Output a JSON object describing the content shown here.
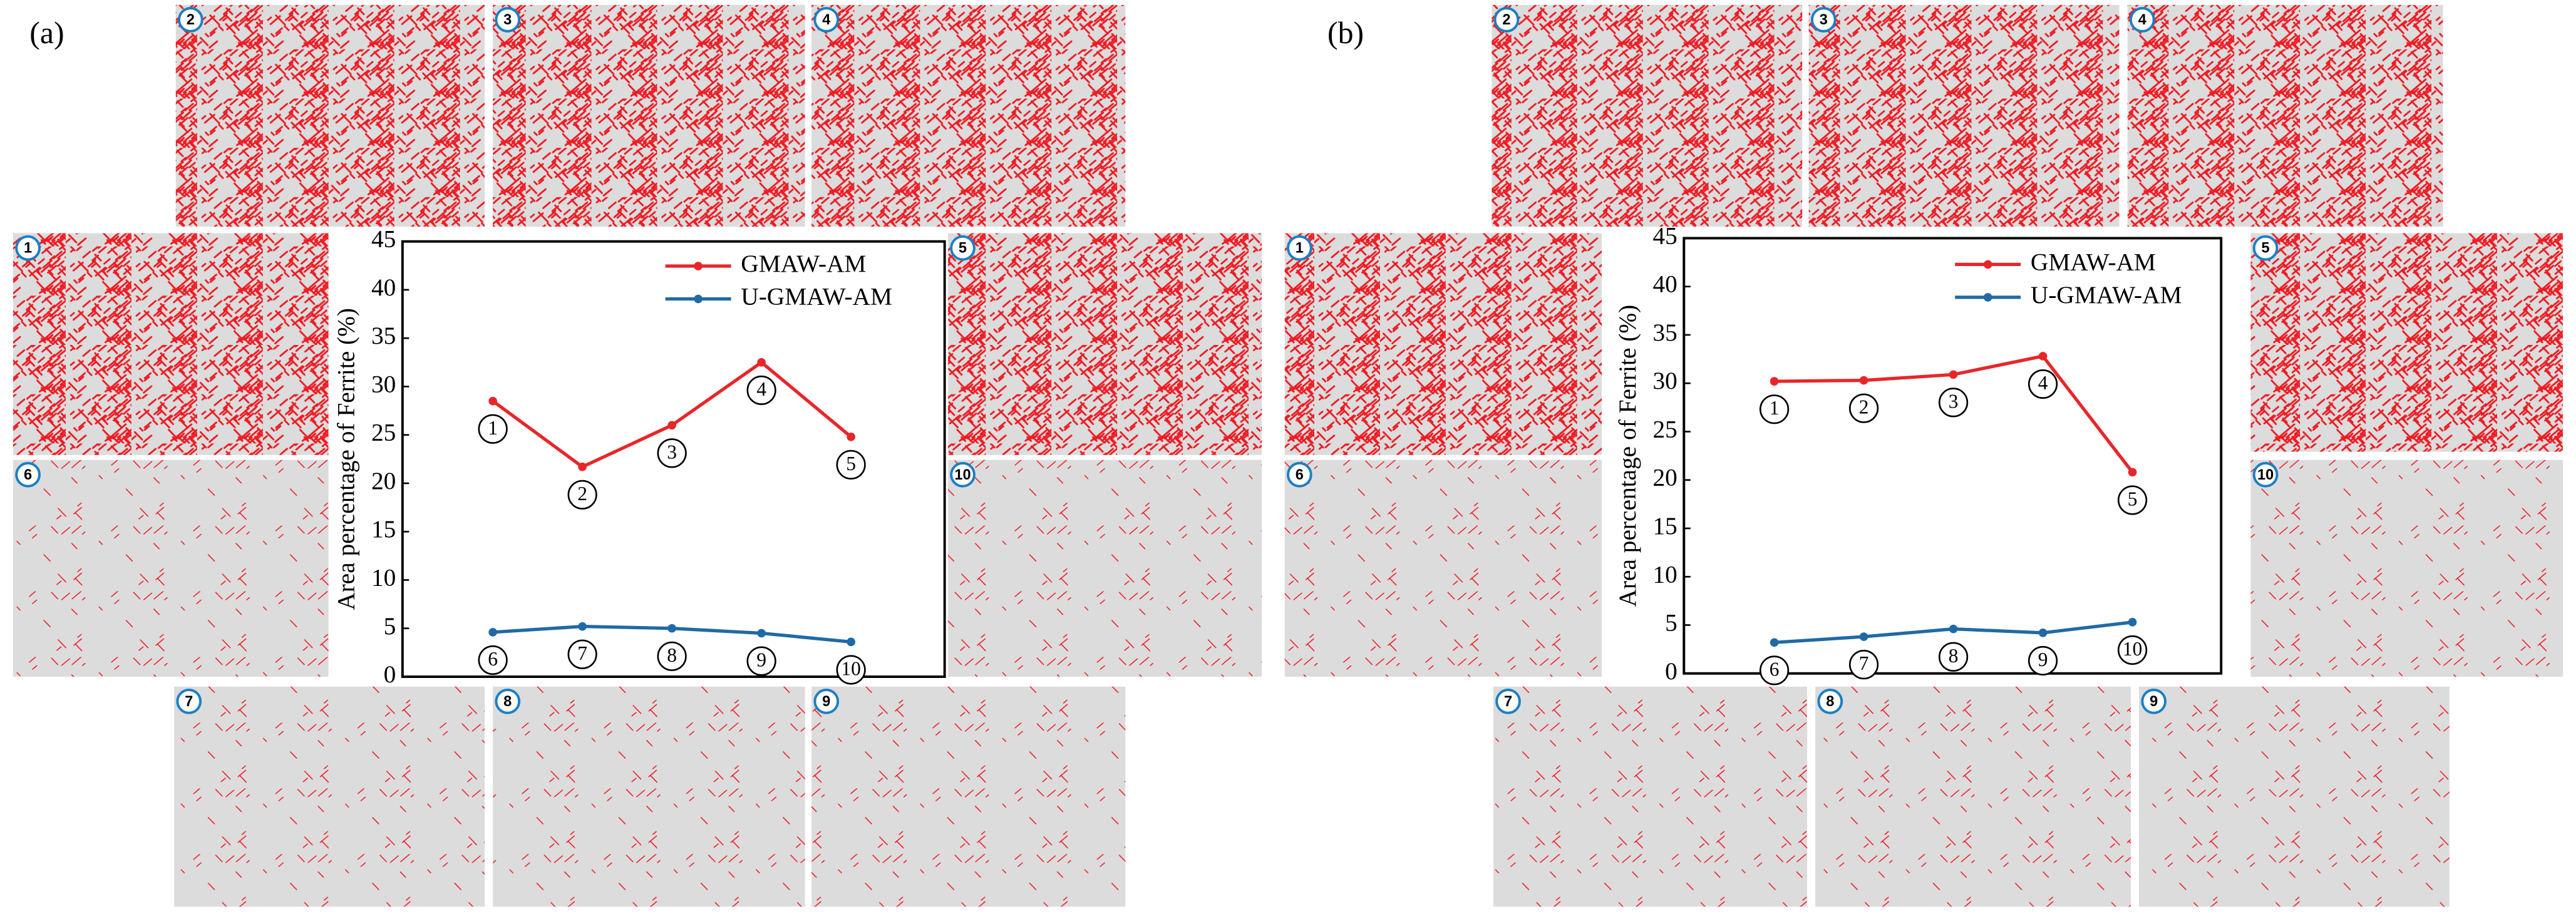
{
  "chart_data": [
    {
      "type": "line",
      "panel_label": "(a)",
      "ylabel": "Area percentage of Ferrite (%)",
      "ylim": [
        0,
        45
      ],
      "yticks": [
        0,
        5,
        10,
        15,
        20,
        25,
        30,
        35,
        40,
        45
      ],
      "legend": "upper right",
      "series": [
        {
          "name": "GMAW-AM",
          "color": "#e8262a",
          "values": [
            28.5,
            21.7,
            26,
            32.5,
            24.8
          ],
          "labels": [
            "1",
            "2",
            "3",
            "4",
            "5"
          ]
        },
        {
          "name": "U-GMAW-AM",
          "color": "#1f6aa5",
          "values": [
            4.6,
            5.2,
            5.0,
            4.5,
            3.6
          ],
          "labels": [
            "6",
            "7",
            "8",
            "9",
            "10"
          ]
        }
      ]
    },
    {
      "type": "line",
      "panel_label": "(b)",
      "ylabel": "Area percentage of Ferrite (%)",
      "ylim": [
        0,
        45
      ],
      "yticks": [
        0,
        5,
        10,
        15,
        20,
        25,
        30,
        35,
        40,
        45
      ],
      "legend": "upper right",
      "series": [
        {
          "name": "GMAW-AM",
          "color": "#e8262a",
          "values": [
            30.2,
            30.3,
            30.9,
            32.8,
            20.8
          ],
          "labels": [
            "1",
            "2",
            "3",
            "4",
            "5"
          ]
        },
        {
          "name": "U-GMAW-AM",
          "color": "#1f6aa5",
          "values": [
            3.2,
            3.8,
            4.6,
            4.2,
            5.3
          ],
          "labels": [
            "6",
            "7",
            "8",
            "9",
            "10"
          ]
        }
      ]
    }
  ]
}
